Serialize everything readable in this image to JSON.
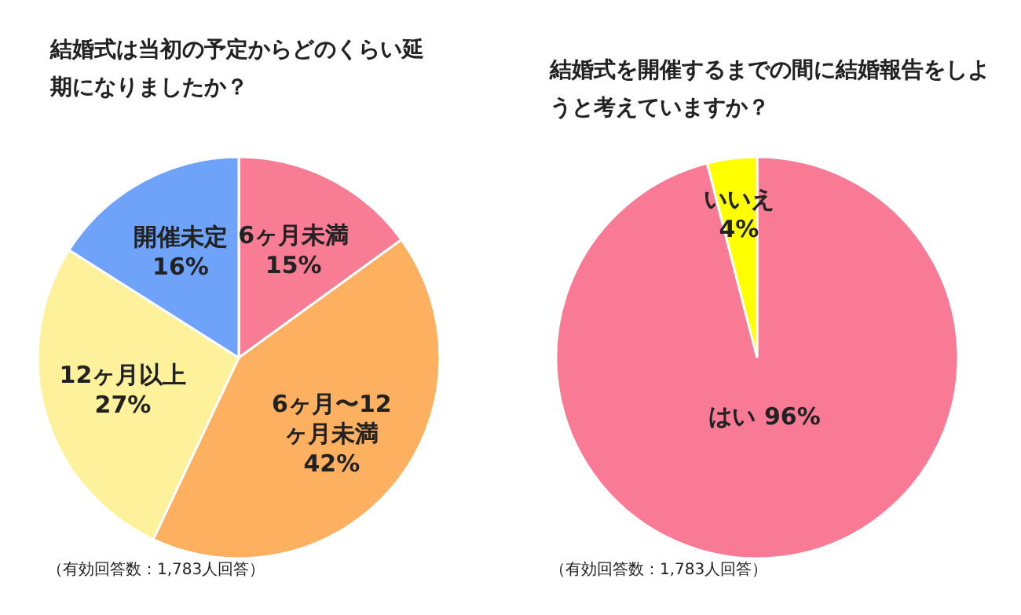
{
  "chart_data": [
    {
      "type": "pie",
      "title": "結婚式は当初の予定からどのくらい延期になりましたか？",
      "categories": [
        "6ヶ月未満",
        "6ヶ月〜12ヶ月未満",
        "12ヶ月以上",
        "開催未定"
      ],
      "values": [
        15,
        42,
        27,
        16
      ],
      "colors": [
        "#f87d94",
        "#fdb05f",
        "#fef19c",
        "#6fa3f9"
      ],
      "value_labels": [
        "15%",
        "42%",
        "27%",
        "16%"
      ],
      "annotations": [
        "（有効回答数：1,783人回答）"
      ]
    },
    {
      "type": "pie",
      "title": "結婚式を開催するまでの間に結婚報告をしようと考えていますか？",
      "categories": [
        "はい",
        "いいえ"
      ],
      "values": [
        96,
        4
      ],
      "colors": [
        "#f87a94",
        "#ffff00"
      ],
      "value_labels": [
        "96%",
        "4%"
      ],
      "annotations": [
        "（有効回答数：1,783人回答）"
      ]
    }
  ]
}
